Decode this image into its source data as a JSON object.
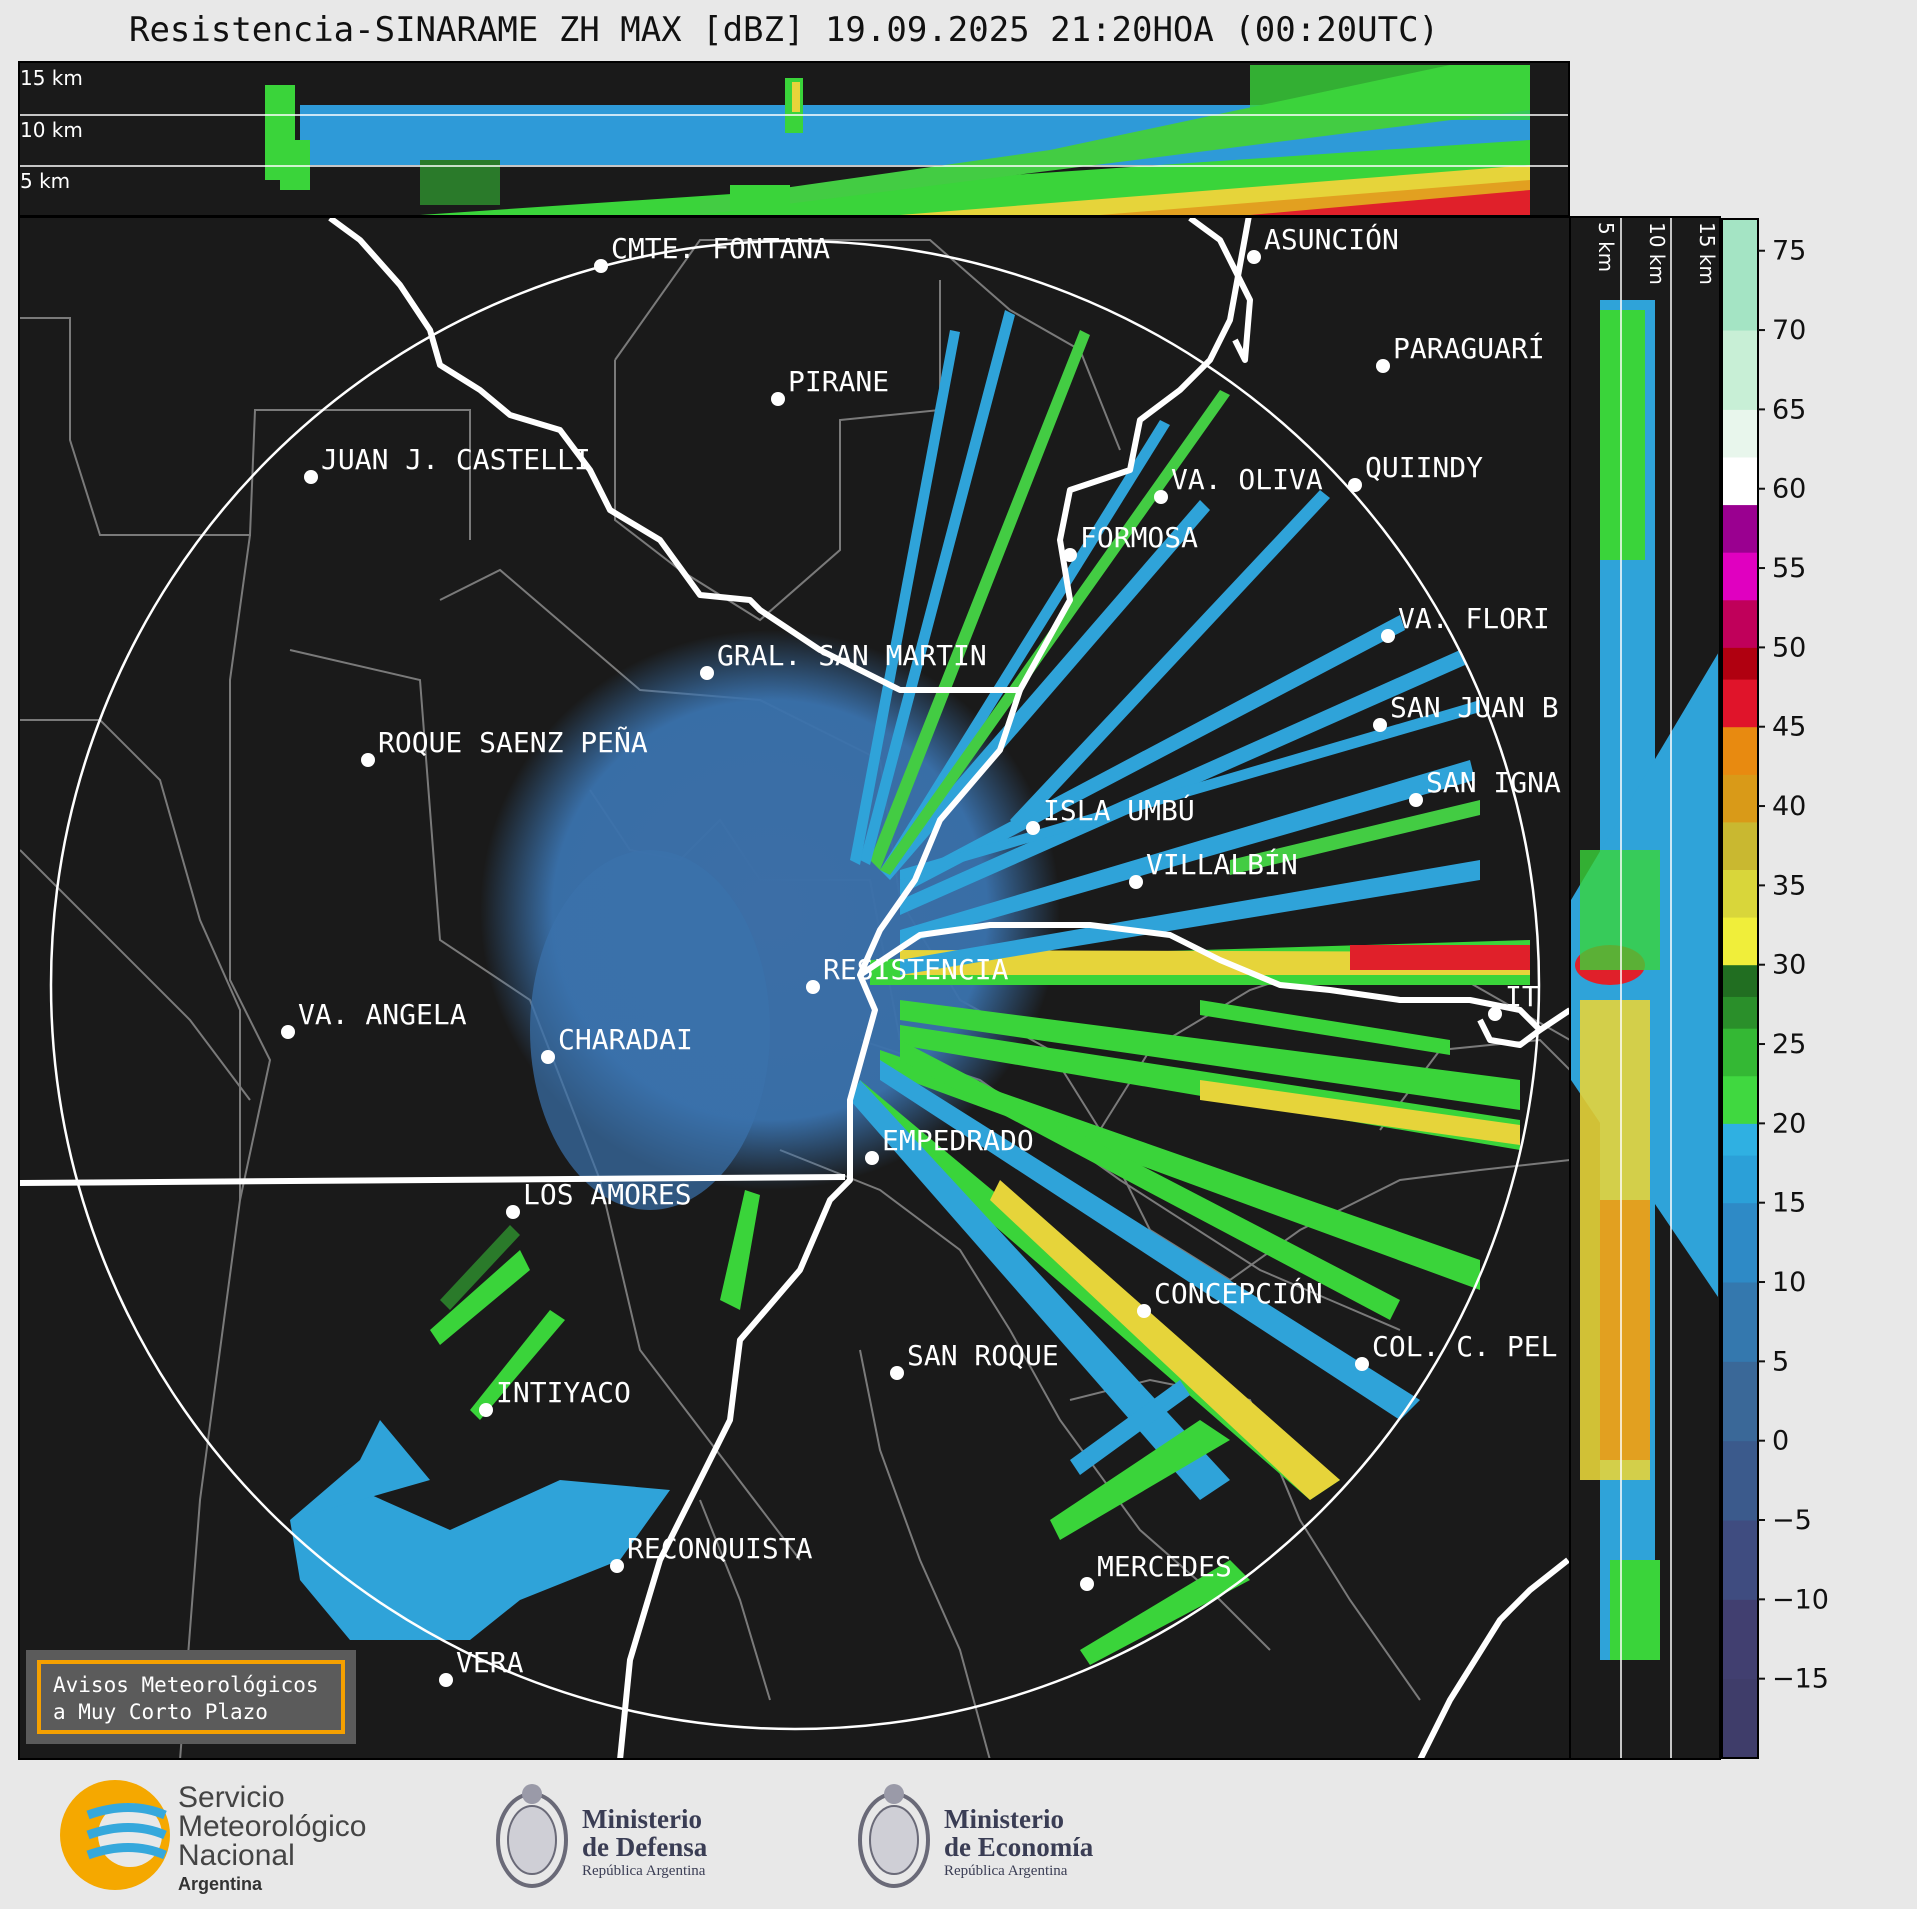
{
  "title": "Resistencia-SINARAME ZH MAX [dBZ] 19.09.2025 21:20HOA (00:20UTC)",
  "top_panel": {
    "levels": [
      "15 km",
      "10 km",
      "5 km"
    ]
  },
  "side_panel": {
    "levels": [
      "5 km",
      "10 km",
      "15 km"
    ]
  },
  "colorbar": {
    "unit": "dBZ",
    "ticks": [
      "75",
      "70",
      "65",
      "60",
      "55",
      "50",
      "45",
      "40",
      "35",
      "30",
      "25",
      "20",
      "15",
      "10",
      "5",
      "0",
      "−5",
      "−10",
      "−15"
    ],
    "range": [
      -20,
      77
    ]
  },
  "cities": [
    {
      "name": "CMTE. FONTANA"
    },
    {
      "name": "ASUNCIÓN"
    },
    {
      "name": "PIRANE"
    },
    {
      "name": "PARAGUARÍ"
    },
    {
      "name": "JUAN J. CASTELLI"
    },
    {
      "name": "VA. OLIVA"
    },
    {
      "name": "QUIINDY"
    },
    {
      "name": "FORMOSA"
    },
    {
      "name": "VA. FLORI"
    },
    {
      "name": "GRAL. SAN MARTIN"
    },
    {
      "name": "SAN JUAN B"
    },
    {
      "name": "ROQUE SAENZ PEÑA"
    },
    {
      "name": "SAN IGNA"
    },
    {
      "name": "ISLA UMBÚ"
    },
    {
      "name": "VILLALBÍN"
    },
    {
      "name": "RESISTENCIA"
    },
    {
      "name": "VA. ANGELA"
    },
    {
      "name": "CHARADAI"
    },
    {
      "name": "IT"
    },
    {
      "name": "EMPEDRADO"
    },
    {
      "name": "LOS AMORES"
    },
    {
      "name": "CONCEPCIÓN"
    },
    {
      "name": "SAN ROQUE"
    },
    {
      "name": "COL. C. PEL"
    },
    {
      "name": "INTIYACO"
    },
    {
      "name": "RECONQUISTA"
    },
    {
      "name": "MERCEDES"
    },
    {
      "name": "VERA"
    }
  ],
  "notice": {
    "line1": "Avisos Meteorológicos",
    "line2": "a Muy Corto Plazo"
  },
  "logos": {
    "smn": {
      "line1": "Servicio",
      "line2": "Meteorológico",
      "line3": "Nacional",
      "line4": "Argentina"
    },
    "defensa": {
      "line1": "Ministerio",
      "line2": "de Defensa",
      "line3": "República Argentina"
    },
    "economia": {
      "line1": "Ministerio",
      "line2": "de Economía",
      "line3": "República Argentina"
    }
  },
  "colors": {
    "background": "#1a1a1a",
    "accent": "#f5a000",
    "rain_blue": "#3a78b0"
  }
}
